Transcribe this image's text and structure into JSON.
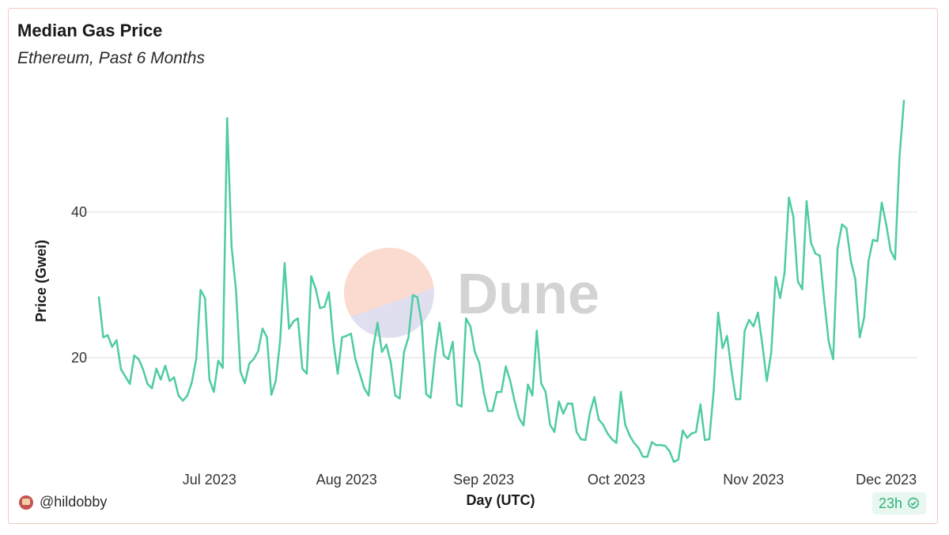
{
  "header": {
    "title": "Median Gas Price",
    "subtitle": "Ethereum, Past 6 Months"
  },
  "footer": {
    "author": "@hildobby",
    "refresh": "23h"
  },
  "watermark": {
    "text": "Dune"
  },
  "colors": {
    "line": "#4fcca0",
    "grid": "#e9e9e9",
    "border": "#f1c9c0",
    "badge_bg": "#e8f7ef",
    "badge_text": "#2fb27a"
  },
  "chart_data": {
    "type": "line",
    "title": "Median Gas Price",
    "subtitle": "Ethereum, Past 6 Months",
    "xlabel": "Day (UTC)",
    "ylabel": "Price (Gwei)",
    "ylim": [
      0,
      55
    ],
    "yticks": [
      20,
      40
    ],
    "xticks": [
      "Jul 2023",
      "Aug 2023",
      "Sep 2023",
      "Oct 2023",
      "Nov 2023",
      "Dec 2023"
    ],
    "grid": true,
    "legend": "none",
    "x_start": "2023-06-06",
    "x_end": "2023-12-05",
    "series": [
      {
        "values": [
          28.3,
          22.8,
          23.1,
          21.5,
          22.4,
          18.4,
          17.4,
          16.4,
          20.3,
          19.8,
          18.4,
          16.4,
          15.8,
          18.5,
          17.0,
          18.9,
          16.8,
          17.3,
          14.8,
          14.1,
          14.8,
          16.6,
          19.8,
          29.3,
          28.2,
          17.0,
          15.3,
          19.6,
          18.6,
          52.9,
          35.3,
          29.3,
          18.1,
          16.5,
          19.2,
          19.8,
          20.9,
          24.0,
          22.8,
          14.9,
          16.8,
          22.4,
          33.0,
          24.0,
          25.0,
          25.4,
          18.5,
          17.8,
          31.2,
          29.5,
          26.8,
          27.0,
          29.0,
          22.3,
          17.8,
          22.8,
          23.0,
          23.3,
          19.8,
          17.8,
          15.8,
          14.8,
          21.3,
          24.8,
          20.8,
          21.8,
          19.3,
          14.8,
          14.4,
          20.8,
          22.8,
          28.6,
          28.3,
          24.8,
          15.0,
          14.5,
          20.3,
          24.8,
          20.3,
          19.8,
          22.2,
          13.6,
          13.3,
          25.4,
          24.3,
          20.8,
          19.3,
          15.3,
          12.7,
          12.7,
          15.3,
          15.3,
          18.8,
          16.8,
          14.0,
          11.7,
          10.7,
          16.3,
          14.8,
          23.7,
          16.5,
          15.3,
          10.8,
          9.8,
          14.0,
          12.3,
          13.7,
          13.7,
          9.8,
          8.8,
          8.7,
          12.4,
          14.6,
          11.5,
          10.8,
          9.6,
          8.8,
          8.3,
          15.3,
          10.8,
          9.3,
          8.3,
          7.6,
          6.4,
          6.4,
          8.4,
          8.0,
          8.0,
          7.9,
          7.2,
          5.7,
          6.0,
          10.0,
          9.0,
          9.6,
          9.8,
          13.6,
          8.7,
          8.8,
          15.5,
          26.2,
          21.3,
          23.0,
          18.3,
          14.3,
          14.3,
          23.7,
          25.2,
          24.3,
          26.2,
          21.8,
          16.8,
          20.7,
          31.1,
          28.2,
          31.6,
          42.0,
          39.3,
          30.5,
          29.4,
          41.5,
          35.8,
          34.3,
          34.0,
          27.8,
          22.2,
          19.8,
          35.0,
          38.3,
          37.8,
          33.3,
          30.8,
          22.8,
          25.5,
          33.3,
          36.2,
          36.0,
          41.3,
          38.3,
          34.7,
          33.5,
          47.5,
          55.3
        ]
      }
    ]
  }
}
